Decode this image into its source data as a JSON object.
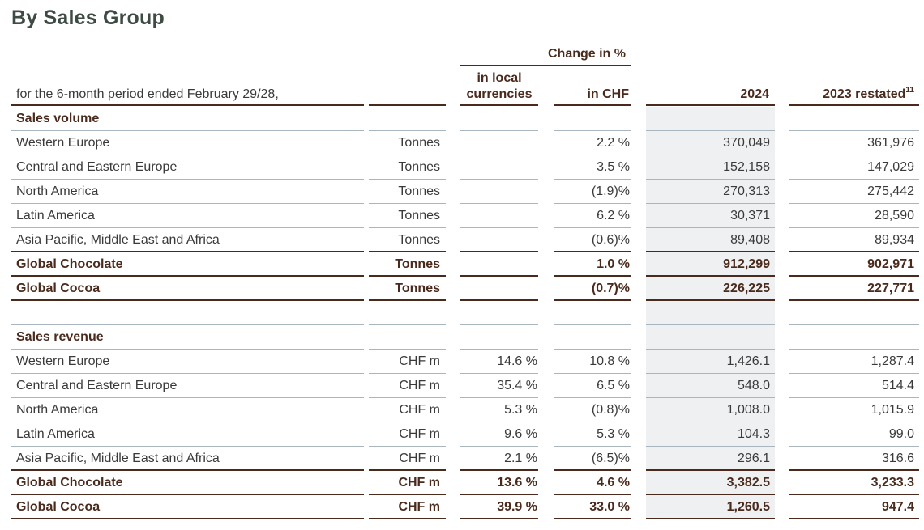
{
  "title": "By Sales Group",
  "header": {
    "period_label": "for the 6-month period ended February 29/28,",
    "change_group": "Change in %",
    "col_local_line1": "in local",
    "col_local_line2": "currencies",
    "col_chf": "in CHF",
    "col_2024": "2024",
    "col_2023": "2023 restated",
    "col_2023_footnote": "11"
  },
  "sections": [
    {
      "heading": "Sales volume",
      "rows": [
        {
          "label": "Western Europe",
          "unit": "Tonnes",
          "local": "",
          "chf": "2.2 %",
          "y2024": "370,049",
          "y2023": "361,976",
          "bold": false
        },
        {
          "label": "Central and Eastern Europe",
          "unit": "Tonnes",
          "local": "",
          "chf": "3.5 %",
          "y2024": "152,158",
          "y2023": "147,029",
          "bold": false
        },
        {
          "label": "North America",
          "unit": "Tonnes",
          "local": "",
          "chf": "(1.9)%",
          "y2024": "270,313",
          "y2023": "275,442",
          "bold": false
        },
        {
          "label": "Latin America",
          "unit": "Tonnes",
          "local": "",
          "chf": "6.2 %",
          "y2024": "30,371",
          "y2023": "28,590",
          "bold": false
        },
        {
          "label": "Asia Pacific, Middle East and Africa",
          "unit": "Tonnes",
          "local": "",
          "chf": "(0.6)%",
          "y2024": "89,408",
          "y2023": "89,934",
          "bold": false
        },
        {
          "label": "Global Chocolate",
          "unit": "Tonnes",
          "local": "",
          "chf": "1.0 %",
          "y2024": "912,299",
          "y2023": "902,971",
          "bold": true
        },
        {
          "label": "Global Cocoa",
          "unit": "Tonnes",
          "local": "",
          "chf": "(0.7)%",
          "y2024": "226,225",
          "y2023": "227,771",
          "bold": true
        }
      ]
    },
    {
      "heading": "Sales revenue",
      "rows": [
        {
          "label": "Western Europe",
          "unit": "CHF m",
          "local": "14.6 %",
          "chf": "10.8 %",
          "y2024": "1,426.1",
          "y2023": "1,287.4",
          "bold": false
        },
        {
          "label": "Central and Eastern Europe",
          "unit": "CHF m",
          "local": "35.4 %",
          "chf": "6.5 %",
          "y2024": "548.0",
          "y2023": "514.4",
          "bold": false
        },
        {
          "label": "North America",
          "unit": "CHF m",
          "local": "5.3 %",
          "chf": "(0.8)%",
          "y2024": "1,008.0",
          "y2023": "1,015.9",
          "bold": false
        },
        {
          "label": "Latin America",
          "unit": "CHF m",
          "local": "9.6 %",
          "chf": "5.3 %",
          "y2024": "104.3",
          "y2023": "99.0",
          "bold": false
        },
        {
          "label": "Asia Pacific, Middle East and Africa",
          "unit": "CHF m",
          "local": "2.1 %",
          "chf": "(6.5)%",
          "y2024": "296.1",
          "y2023": "316.6",
          "bold": false
        },
        {
          "label": "Global Chocolate",
          "unit": "CHF m",
          "local": "13.6 %",
          "chf": "4.6 %",
          "y2024": "3,382.5",
          "y2023": "3,233.3",
          "bold": true
        },
        {
          "label": "Global Cocoa",
          "unit": "CHF m",
          "local": "39.9 %",
          "chf": "33.0 %",
          "y2024": "1,260.5",
          "y2023": "947.4",
          "bold": true
        }
      ]
    }
  ],
  "colors": {
    "title": "#3d4b43",
    "heading_text": "#4a2a1c",
    "thick_rule": "#4a2a1c",
    "thin_rule": "#a9b6c0",
    "band": "#eef0f2"
  }
}
